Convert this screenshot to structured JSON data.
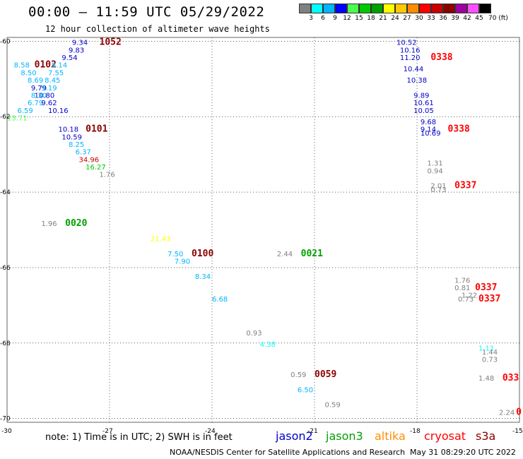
{
  "header": {
    "title": "00:00 – 11:59 UTC 05/29/2022",
    "subtitle": "12 hour collection of altimeter wave heights"
  },
  "color_scale": {
    "swatches": [
      "#808080",
      "#00ffff",
      "#00b4ff",
      "#0000ff",
      "#4cff4c",
      "#00c800",
      "#00a000",
      "#ffff00",
      "#ffc800",
      "#ff8c00",
      "#ff0000",
      "#c80000",
      "#8b0000",
      "#a000a0",
      "#ff50ff",
      "#000000"
    ],
    "labels": [
      "3",
      "6",
      "9",
      "12",
      "15",
      "18",
      "21",
      "24",
      "27",
      "30",
      "33",
      "36",
      "39",
      "42",
      "45",
      "70 (ft)"
    ]
  },
  "axes": {
    "lon_labels": [
      "-30",
      "-27",
      "-24",
      "-21",
      "-18",
      "-15"
    ],
    "lon_values": [
      -30,
      -27,
      -24,
      -21,
      -18,
      -15
    ],
    "lat_labels": [
      "-60",
      "-62",
      "-64",
      "-66",
      "-68",
      "-70"
    ],
    "lat_values": [
      -60,
      -62,
      -64,
      -66,
      -68,
      -70
    ]
  },
  "wave_labels": [
    {
      "text": "9.34",
      "color": "#0000c8",
      "lon": -28.1,
      "lat": -60.1
    },
    {
      "text": "1052",
      "color": "#8b0000",
      "lon": -27.3,
      "lat": -60.1,
      "big": true
    },
    {
      "text": "9.83",
      "color": "#0000c8",
      "lon": -28.2,
      "lat": -60.3
    },
    {
      "text": "9.54",
      "color": "#0000c8",
      "lon": -28.4,
      "lat": -60.5
    },
    {
      "text": "8.58",
      "color": "#00b4ff",
      "lon": -29.8,
      "lat": -60.7
    },
    {
      "text": "0102",
      "color": "#8b0000",
      "lon": -29.2,
      "lat": -60.7,
      "big": true
    },
    {
      "text": "8.14",
      "color": "#00b4ff",
      "lon": -28.7,
      "lat": -60.7
    },
    {
      "text": "8.50",
      "color": "#00b4ff",
      "lon": -29.6,
      "lat": -60.9
    },
    {
      "text": "7.55",
      "color": "#00b4ff",
      "lon": -28.8,
      "lat": -60.9
    },
    {
      "text": "8.69",
      "color": "#00b4ff",
      "lon": -29.4,
      "lat": -61.1
    },
    {
      "text": "8.45",
      "color": "#00b4ff",
      "lon": -28.9,
      "lat": -61.1
    },
    {
      "text": "9.79",
      "color": "#0000c8",
      "lon": -29.3,
      "lat": -61.3
    },
    {
      "text": "9.19",
      "color": "#00b4ff",
      "lon": -29.0,
      "lat": -61.3
    },
    {
      "text": "10.80",
      "color": "#0000c8",
      "lon": -29.2,
      "lat": -61.5
    },
    {
      "text": "8.30",
      "color": "#00b4ff",
      "lon": -29.3,
      "lat": -61.5
    },
    {
      "text": "6.79",
      "color": "#00b4ff",
      "lon": -29.4,
      "lat": -61.7
    },
    {
      "text": "9.62",
      "color": "#0000c8",
      "lon": -29.0,
      "lat": -61.7
    },
    {
      "text": "6.59",
      "color": "#00b4ff",
      "lon": -29.7,
      "lat": -61.9
    },
    {
      "text": "10.16",
      "color": "#0000c8",
      "lon": -28.8,
      "lat": -61.9
    },
    {
      "text": "13.71",
      "color": "#4cff4c",
      "lon": -30.0,
      "lat": -62.1
    },
    {
      "text": "10.18",
      "color": "#0000c8",
      "lon": -28.5,
      "lat": -62.4
    },
    {
      "text": "0101",
      "color": "#8b0000",
      "lon": -27.7,
      "lat": -62.4,
      "big": true
    },
    {
      "text": "10.59",
      "color": "#0000c8",
      "lon": -28.4,
      "lat": -62.6
    },
    {
      "text": "8.25",
      "color": "#00b4ff",
      "lon": -28.2,
      "lat": -62.8
    },
    {
      "text": "6.37",
      "color": "#00b4ff",
      "lon": -28.0,
      "lat": -63.0
    },
    {
      "text": "34.96",
      "color": "#c80000",
      "lon": -27.9,
      "lat": -63.2
    },
    {
      "text": "16.27",
      "color": "#00c800",
      "lon": -27.7,
      "lat": -63.4
    },
    {
      "text": "1.76",
      "color": "#808080",
      "lon": -27.3,
      "lat": -63.6
    },
    {
      "text": "1.96",
      "color": "#808080",
      "lon": -29.0,
      "lat": -64.9
    },
    {
      "text": "0020",
      "color": "#00a000",
      "lon": -28.3,
      "lat": -64.9,
      "big": true
    },
    {
      "text": "21.43",
      "color": "#ffff00",
      "lon": -25.8,
      "lat": -65.3
    },
    {
      "text": "7.50",
      "color": "#00b4ff",
      "lon": -25.3,
      "lat": -65.7
    },
    {
      "text": "0100",
      "color": "#8b0000",
      "lon": -24.6,
      "lat": -65.7,
      "big": true
    },
    {
      "text": "7.90",
      "color": "#00b4ff",
      "lon": -25.1,
      "lat": -65.9
    },
    {
      "text": "2.44",
      "color": "#808080",
      "lon": -22.1,
      "lat": -65.7
    },
    {
      "text": "0021",
      "color": "#00a000",
      "lon": -21.4,
      "lat": -65.7,
      "big": true
    },
    {
      "text": "8.34",
      "color": "#00b4ff",
      "lon": -24.5,
      "lat": -66.3
    },
    {
      "text": "6.68",
      "color": "#00b4ff",
      "lon": -24.0,
      "lat": -66.9
    },
    {
      "text": "0.93",
      "color": "#808080",
      "lon": -23.0,
      "lat": -67.8
    },
    {
      "text": "4.38",
      "color": "#00ffff",
      "lon": -22.6,
      "lat": -68.1
    },
    {
      "text": "0.59",
      "color": "#808080",
      "lon": -21.7,
      "lat": -68.9
    },
    {
      "text": "0059",
      "color": "#8b0000",
      "lon": -21.0,
      "lat": -68.9,
      "big": true
    },
    {
      "text": "6.50",
      "color": "#00b4ff",
      "lon": -21.5,
      "lat": -69.3
    },
    {
      "text": "0.59",
      "color": "#808080",
      "lon": -20.7,
      "lat": -69.7
    },
    {
      "text": "10.52",
      "color": "#0000c8",
      "lon": -18.6,
      "lat": -60.1
    },
    {
      "text": "10.16",
      "color": "#0000c8",
      "lon": -18.5,
      "lat": -60.3
    },
    {
      "text": "11.20",
      "color": "#0000c8",
      "lon": -18.5,
      "lat": -60.5
    },
    {
      "text": "0338",
      "color": "#ff0000",
      "lon": -17.6,
      "lat": -60.5,
      "big": true
    },
    {
      "text": "10.44",
      "color": "#0000c8",
      "lon": -18.4,
      "lat": -60.8
    },
    {
      "text": "10.38",
      "color": "#0000c8",
      "lon": -18.3,
      "lat": -61.1
    },
    {
      "text": "9.89",
      "color": "#0000c8",
      "lon": -18.1,
      "lat": -61.5
    },
    {
      "text": "10.61",
      "color": "#0000c8",
      "lon": -18.1,
      "lat": -61.7
    },
    {
      "text": "10.05",
      "color": "#0000c8",
      "lon": -18.1,
      "lat": -61.9
    },
    {
      "text": "9.68",
      "color": "#0000c8",
      "lon": -17.9,
      "lat": -62.2
    },
    {
      "text": "9.14",
      "color": "#0000c8",
      "lon": -17.9,
      "lat": -62.4
    },
    {
      "text": "0338",
      "color": "#ff0000",
      "lon": -17.1,
      "lat": -62.4,
      "big": true
    },
    {
      "text": "10.69",
      "color": "#0000c8",
      "lon": -17.9,
      "lat": -62.5
    },
    {
      "text": "1.31",
      "color": "#808080",
      "lon": -17.7,
      "lat": -63.3
    },
    {
      "text": "0.94",
      "color": "#808080",
      "lon": -17.7,
      "lat": -63.5
    },
    {
      "text": "2.01",
      "color": "#808080",
      "lon": -17.6,
      "lat": -63.9
    },
    {
      "text": "0337",
      "color": "#ff0000",
      "lon": -16.9,
      "lat": -63.9,
      "big": true
    },
    {
      "text": "0.73",
      "color": "#808080",
      "lon": -17.6,
      "lat": -64.0
    },
    {
      "text": "1.76",
      "color": "#808080",
      "lon": -16.9,
      "lat": -66.4
    },
    {
      "text": "0.81",
      "color": "#808080",
      "lon": -16.9,
      "lat": -66.6
    },
    {
      "text": "0337",
      "color": "#ff0000",
      "lon": -16.3,
      "lat": -66.6,
      "big": true
    },
    {
      "text": "1.22",
      "color": "#808080",
      "lon": -16.7,
      "lat": -66.8
    },
    {
      "text": "0.73",
      "color": "#808080",
      "lon": -16.8,
      "lat": -66.9
    },
    {
      "text": "0337",
      "color": "#ff0000",
      "lon": -16.2,
      "lat": -66.9,
      "big": true
    },
    {
      "text": "1.11",
      "color": "#00ffff",
      "lon": -16.2,
      "lat": -68.2
    },
    {
      "text": "1.44",
      "color": "#808080",
      "lon": -16.1,
      "lat": -68.3
    },
    {
      "text": "0.73",
      "color": "#808080",
      "lon": -16.1,
      "lat": -68.5
    },
    {
      "text": "1.48",
      "color": "#808080",
      "lon": -16.2,
      "lat": -69.0
    },
    {
      "text": "033",
      "color": "#ff0000",
      "lon": -15.5,
      "lat": -69.0,
      "big": true
    },
    {
      "text": "2.24",
      "color": "#808080",
      "lon": -15.6,
      "lat": -69.9
    },
    {
      "text": "0",
      "color": "#ff0000",
      "lon": -15.1,
      "lat": -69.9,
      "big": true
    }
  ],
  "footer": {
    "note": "note: 1) Time is in UTC; 2) SWH is in feet",
    "satellites": [
      {
        "name": "jason2",
        "color": "#0000c8"
      },
      {
        "name": "jason3",
        "color": "#00a000"
      },
      {
        "name": "altika",
        "color": "#ff8c00"
      },
      {
        "name": "cryosat",
        "color": "#ff0000"
      },
      {
        "name": "s3a",
        "color": "#8b0000"
      }
    ],
    "credit": "NOAA/NESDIS Center for Satellite Applications and Research",
    "generated": "May 31 08:29:20 UTC 2022"
  }
}
